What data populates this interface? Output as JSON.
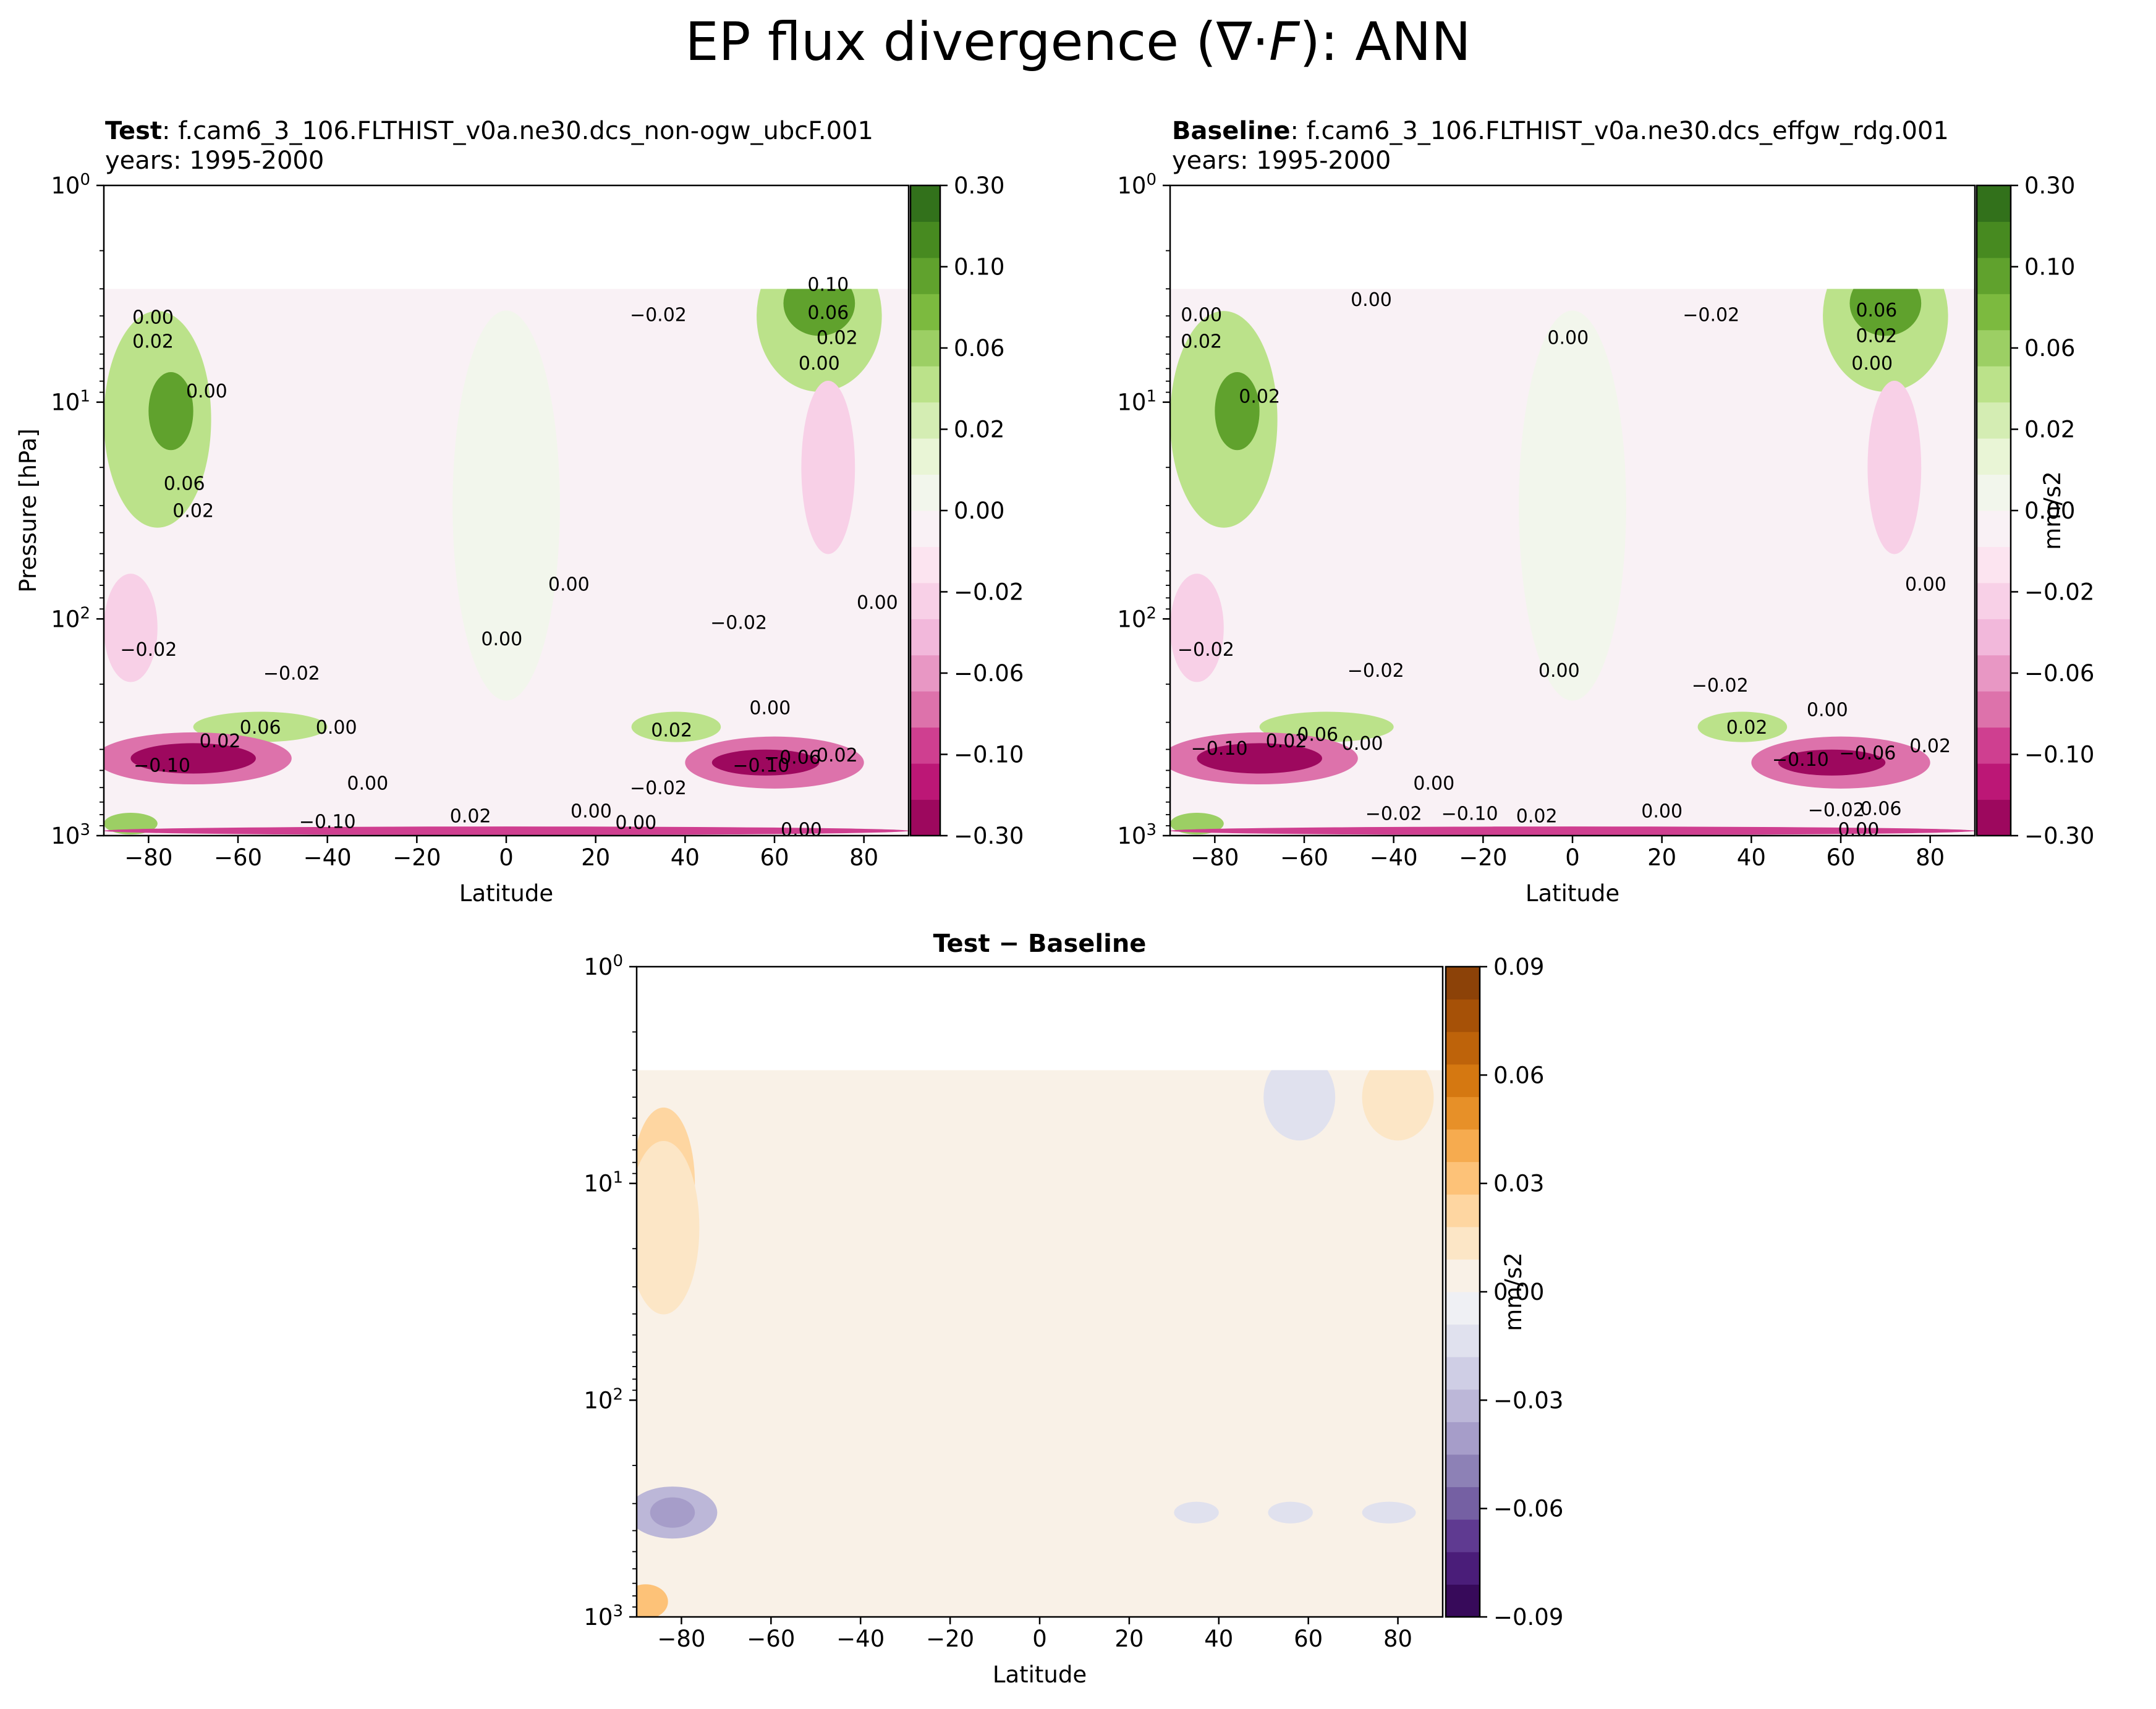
{
  "figure": {
    "title": "EP flux divergence (∇·F): ANN",
    "title_parts": [
      "EP flux divergence (",
      "∇·",
      "F",
      "): ANN"
    ]
  },
  "chart_data": [
    {
      "type": "contour",
      "panel": "test",
      "title_bold": "Test",
      "title_rest": ": f.cam6_3_106.FLTHIST_v0a.ne30.dcs_non-ogw_ubcF.001",
      "subtitle": "years: 1995-2000",
      "xlabel": "Latitude",
      "ylabel": "Pressure [hPa]",
      "xlim": [
        -90,
        90
      ],
      "ylim": [
        1000,
        1
      ],
      "y_scale": "log",
      "x_ticks": [
        -80,
        -60,
        -40,
        -20,
        0,
        20,
        40,
        60,
        80
      ],
      "y_tick_labels": [
        "10^0",
        "10^1",
        "10^2",
        "10^3"
      ],
      "data_top_hPa": 3,
      "colormap": "PiYG",
      "colorbar": {
        "levels": [
          -0.3,
          -0.14,
          -0.12,
          -0.1,
          -0.08,
          -0.06,
          -0.04,
          -0.02,
          -0.01,
          0.0,
          0.01,
          0.02,
          0.04,
          0.06,
          0.08,
          0.1,
          0.12,
          0.14,
          0.3
        ],
        "tick_labels": [
          "0.30",
          "0.10",
          "0.06",
          "0.02",
          "0.00",
          "−0.02",
          "−0.06",
          "−0.10",
          "−0.30"
        ],
        "label": ""
      },
      "contour_labels": [
        {
          "lat": -79,
          "p": 4.1,
          "text": "0.00"
        },
        {
          "lat": -79,
          "p": 5.3,
          "text": "0.02"
        },
        {
          "lat": -67,
          "p": 9.0,
          "text": "0.00"
        },
        {
          "lat": -72,
          "p": 24,
          "text": "0.06"
        },
        {
          "lat": -70,
          "p": 32,
          "text": "0.02"
        },
        {
          "lat": 14,
          "p": 70,
          "text": "0.00"
        },
        {
          "lat": 83,
          "p": 85,
          "text": "0.00"
        },
        {
          "lat": -80,
          "p": 140,
          "text": "−0.02"
        },
        {
          "lat": -48,
          "p": 180,
          "text": "−0.02"
        },
        {
          "lat": -1,
          "p": 125,
          "text": "0.00"
        },
        {
          "lat": 52,
          "p": 105,
          "text": "−0.02"
        },
        {
          "lat": 34,
          "p": 4.0,
          "text": "−0.02"
        },
        {
          "lat": 72,
          "p": 2.9,
          "text": "0.10"
        },
        {
          "lat": 72,
          "p": 3.9,
          "text": "0.06"
        },
        {
          "lat": 74,
          "p": 5.1,
          "text": "0.02"
        },
        {
          "lat": 70,
          "p": 6.7,
          "text": "0.00"
        },
        {
          "lat": -55,
          "p": 320,
          "text": "0.06"
        },
        {
          "lat": -38,
          "p": 320,
          "text": "0.00"
        },
        {
          "lat": -31,
          "p": 580,
          "text": "0.00"
        },
        {
          "lat": -64,
          "p": 370,
          "text": "0.02"
        },
        {
          "lat": -77,
          "p": 480,
          "text": "−0.10"
        },
        {
          "lat": 37,
          "p": 330,
          "text": "0.02"
        },
        {
          "lat": 59,
          "p": 260,
          "text": "0.00"
        },
        {
          "lat": 57,
          "p": 480,
          "text": "−0.10"
        },
        {
          "lat": 64,
          "p": 440,
          "text": "−0.06"
        },
        {
          "lat": 74,
          "p": 430,
          "text": "0.02"
        },
        {
          "lat": 34,
          "p": 610,
          "text": "−0.02"
        },
        {
          "lat": -40,
          "p": 870,
          "text": "−0.10"
        },
        {
          "lat": -8,
          "p": 820,
          "text": "0.02"
        },
        {
          "lat": 19,
          "p": 780,
          "text": "0.00"
        },
        {
          "lat": 29,
          "p": 880,
          "text": "0.00"
        },
        {
          "lat": 66,
          "p": 950,
          "text": "0.00"
        }
      ]
    },
    {
      "type": "contour",
      "panel": "baseline",
      "title_bold": "Baseline",
      "title_rest": ": f.cam6_3_106.FLTHIST_v0a.ne30.dcs_effgw_rdg.001",
      "subtitle": "years: 1995-2000",
      "xlabel": "Latitude",
      "ylabel": "",
      "xlim": [
        -90,
        90
      ],
      "ylim": [
        1000,
        1
      ],
      "y_scale": "log",
      "x_ticks": [
        -80,
        -60,
        -40,
        -20,
        0,
        20,
        40,
        60,
        80
      ],
      "y_tick_labels": [
        "10^0",
        "10^1",
        "10^2",
        "10^3"
      ],
      "data_top_hPa": 3,
      "colormap": "PiYG",
      "colorbar": {
        "levels": [
          -0.3,
          -0.14,
          -0.12,
          -0.1,
          -0.08,
          -0.06,
          -0.04,
          -0.02,
          -0.01,
          0.0,
          0.01,
          0.02,
          0.04,
          0.06,
          0.08,
          0.1,
          0.12,
          0.14,
          0.3
        ],
        "tick_labels": [
          "0.30",
          "0.10",
          "0.06",
          "0.02",
          "0.00",
          "−0.02",
          "−0.06",
          "−0.10",
          "−0.30"
        ],
        "label": "mm/s2"
      },
      "contour_labels": [
        {
          "lat": -45,
          "p": 3.4,
          "text": "0.00"
        },
        {
          "lat": -83,
          "p": 4.0,
          "text": "0.00"
        },
        {
          "lat": -83,
          "p": 5.3,
          "text": "0.02"
        },
        {
          "lat": -70,
          "p": 9.5,
          "text": "0.02"
        },
        {
          "lat": -1,
          "p": 5.1,
          "text": "0.00"
        },
        {
          "lat": 31,
          "p": 4.0,
          "text": "−0.02"
        },
        {
          "lat": 68,
          "p": 3.8,
          "text": "0.06"
        },
        {
          "lat": 68,
          "p": 5.0,
          "text": "0.02"
        },
        {
          "lat": 67,
          "p": 6.7,
          "text": "0.00"
        },
        {
          "lat": 79,
          "p": 70,
          "text": "0.00"
        },
        {
          "lat": -82,
          "p": 140,
          "text": "−0.02"
        },
        {
          "lat": -44,
          "p": 175,
          "text": "−0.02"
        },
        {
          "lat": -3,
          "p": 175,
          "text": "0.00"
        },
        {
          "lat": 33,
          "p": 205,
          "text": "−0.02"
        },
        {
          "lat": 57,
          "p": 265,
          "text": "0.00"
        },
        {
          "lat": -64,
          "p": 370,
          "text": "0.02"
        },
        {
          "lat": -57,
          "p": 345,
          "text": "0.06"
        },
        {
          "lat": -47,
          "p": 380,
          "text": "0.00"
        },
        {
          "lat": -79,
          "p": 400,
          "text": "−0.10"
        },
        {
          "lat": 39,
          "p": 320,
          "text": "0.02"
        },
        {
          "lat": 51,
          "p": 450,
          "text": "−0.10"
        },
        {
          "lat": 66,
          "p": 420,
          "text": "−0.06"
        },
        {
          "lat": 80,
          "p": 390,
          "text": "0.02"
        },
        {
          "lat": -31,
          "p": 580,
          "text": "0.00"
        },
        {
          "lat": -40,
          "p": 800,
          "text": "−0.02"
        },
        {
          "lat": -23,
          "p": 800,
          "text": "−0.10"
        },
        {
          "lat": -8,
          "p": 820,
          "text": "0.02"
        },
        {
          "lat": 20,
          "p": 780,
          "text": "0.00"
        },
        {
          "lat": 59,
          "p": 770,
          "text": "−0.02"
        },
        {
          "lat": 69,
          "p": 760,
          "text": "0.06"
        },
        {
          "lat": 64,
          "p": 950,
          "text": "0.00"
        }
      ]
    },
    {
      "type": "contour",
      "panel": "difference",
      "title_bold": "Test − Baseline",
      "xlabel": "Latitude",
      "ylabel": "",
      "xlim": [
        -90,
        90
      ],
      "ylim": [
        1000,
        1
      ],
      "y_scale": "log",
      "x_ticks": [
        -80,
        -60,
        -40,
        -20,
        0,
        20,
        40,
        60,
        80
      ],
      "y_tick_labels": [
        "10^0",
        "10^1",
        "10^2",
        "10^3"
      ],
      "data_top_hPa": 3,
      "colormap": "PuOr_r",
      "colorbar": {
        "levels": [
          -0.1,
          -0.09,
          -0.08,
          -0.07,
          -0.06,
          -0.05,
          -0.04,
          -0.03,
          -0.02,
          -0.01,
          0.0,
          0.01,
          0.02,
          0.03,
          0.04,
          0.05,
          0.06,
          0.07,
          0.08,
          0.09,
          0.1
        ],
        "tick_labels": [
          "0.09",
          "0.06",
          "0.03",
          "0.00",
          "−0.03",
          "−0.06",
          "−0.09"
        ],
        "label": "mm/s2"
      }
    }
  ]
}
